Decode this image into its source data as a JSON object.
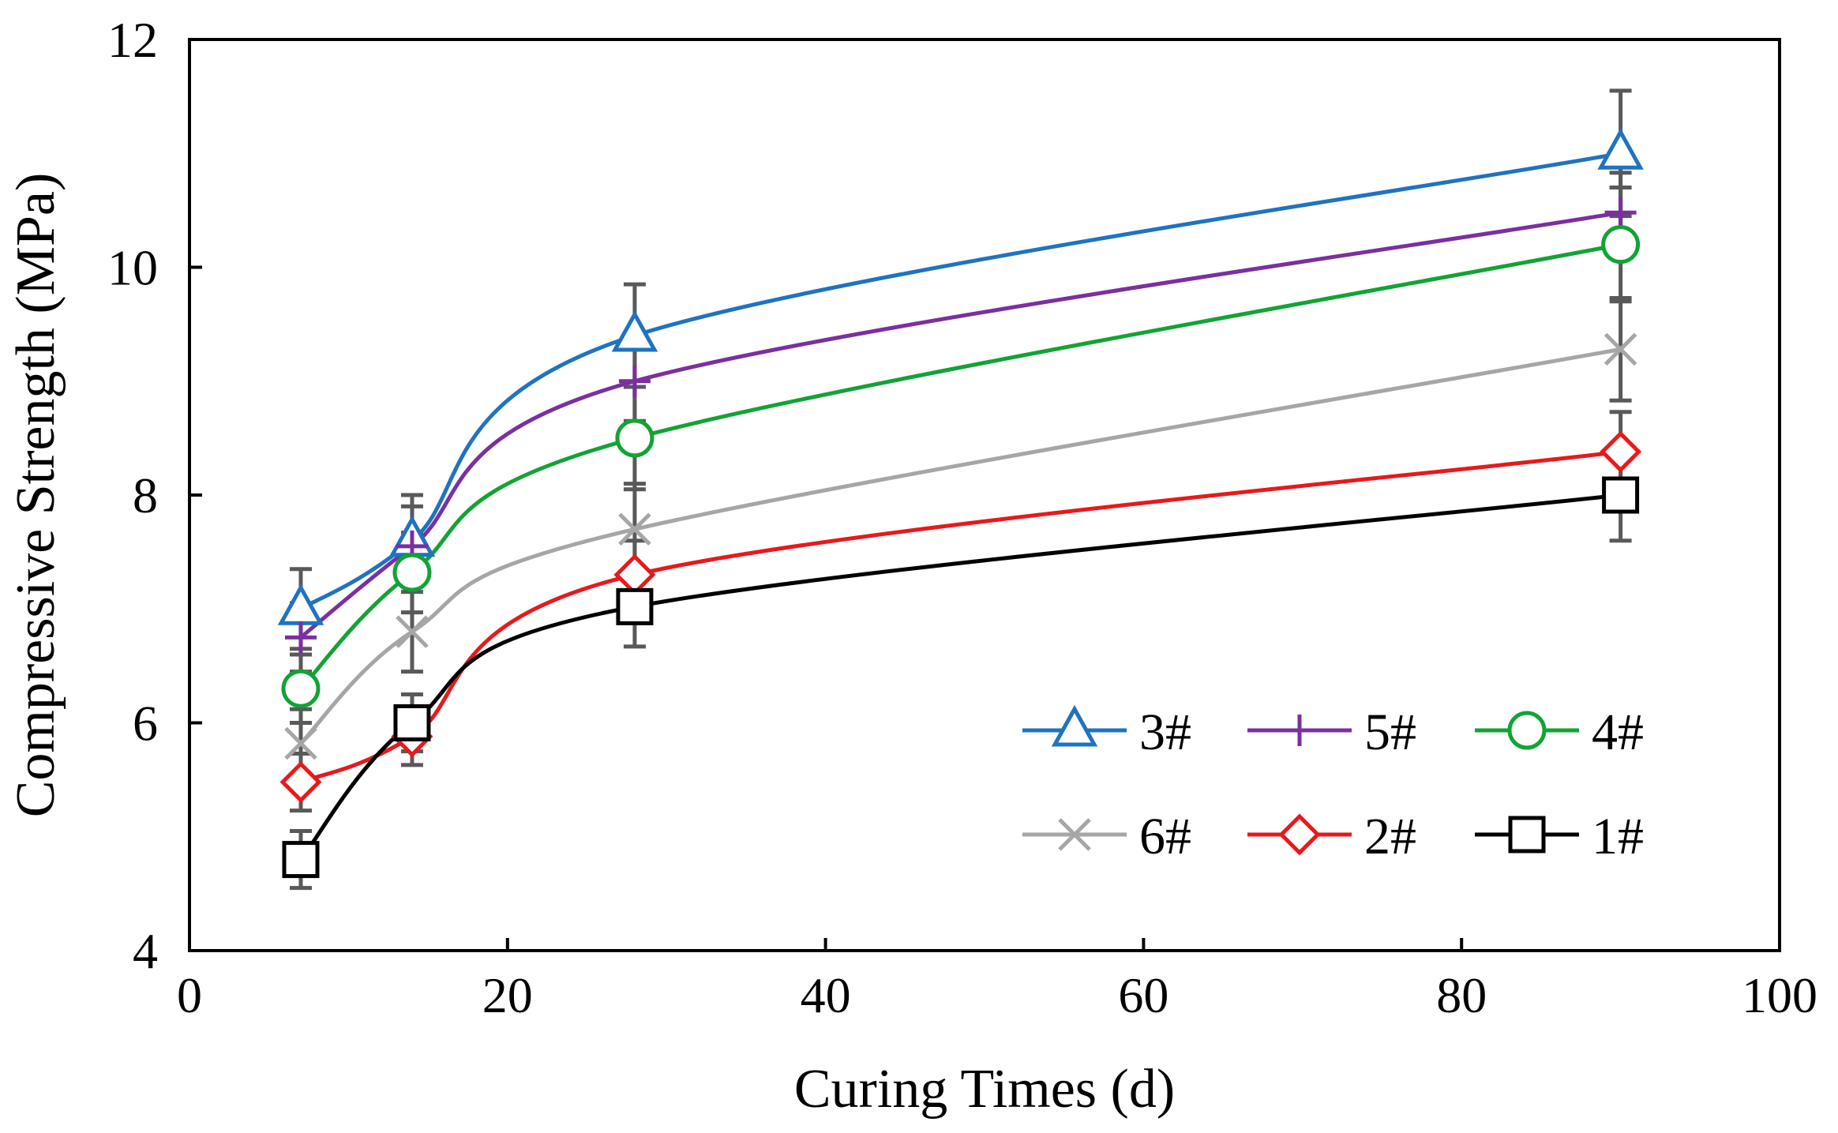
{
  "chart_data": {
    "type": "line",
    "title": "",
    "xlabel": "Curing Times (d)",
    "ylabel": "Compressive Strength (MPa)",
    "xlim": [
      0,
      100
    ],
    "ylim": [
      4,
      12
    ],
    "xticks": [
      0,
      20,
      40,
      60,
      80,
      100
    ],
    "yticks": [
      4,
      6,
      8,
      10,
      12
    ],
    "grid": false,
    "legend_position": "bottom-right",
    "x": [
      7,
      14,
      28,
      90
    ],
    "series": [
      {
        "name": "3#",
        "marker": "triangle",
        "color": "#1f73c0",
        "values": [
          7.0,
          7.6,
          9.4,
          11.0
        ],
        "errors": [
          0.35,
          0.4,
          0.45,
          0.55
        ]
      },
      {
        "name": "5#",
        "marker": "plus",
        "color": "#7b2fa0",
        "values": [
          6.75,
          7.55,
          9.0,
          10.48
        ],
        "errors": [
          0.3,
          0.35,
          0.35,
          0.35
        ]
      },
      {
        "name": "4#",
        "marker": "circle",
        "color": "#12a335",
        "values": [
          6.3,
          7.32,
          8.5,
          10.2
        ],
        "errors": [
          0.3,
          0.35,
          0.45,
          0.5
        ]
      },
      {
        "name": "6#",
        "marker": "x",
        "color": "#a6a6a6",
        "values": [
          5.82,
          6.8,
          7.7,
          9.28
        ],
        "errors": [
          0.3,
          0.35,
          0.4,
          0.45
        ]
      },
      {
        "name": "2#",
        "marker": "diamond",
        "color": "#e8191b",
        "values": [
          5.48,
          5.88,
          7.3,
          8.38
        ],
        "errors": [
          0.25,
          0.25,
          0.3,
          0.35
        ]
      },
      {
        "name": "1#",
        "marker": "square",
        "color": "#000000",
        "values": [
          4.8,
          6.0,
          7.02,
          8.0
        ],
        "errors": [
          0.25,
          0.25,
          0.35,
          0.4
        ]
      }
    ]
  }
}
